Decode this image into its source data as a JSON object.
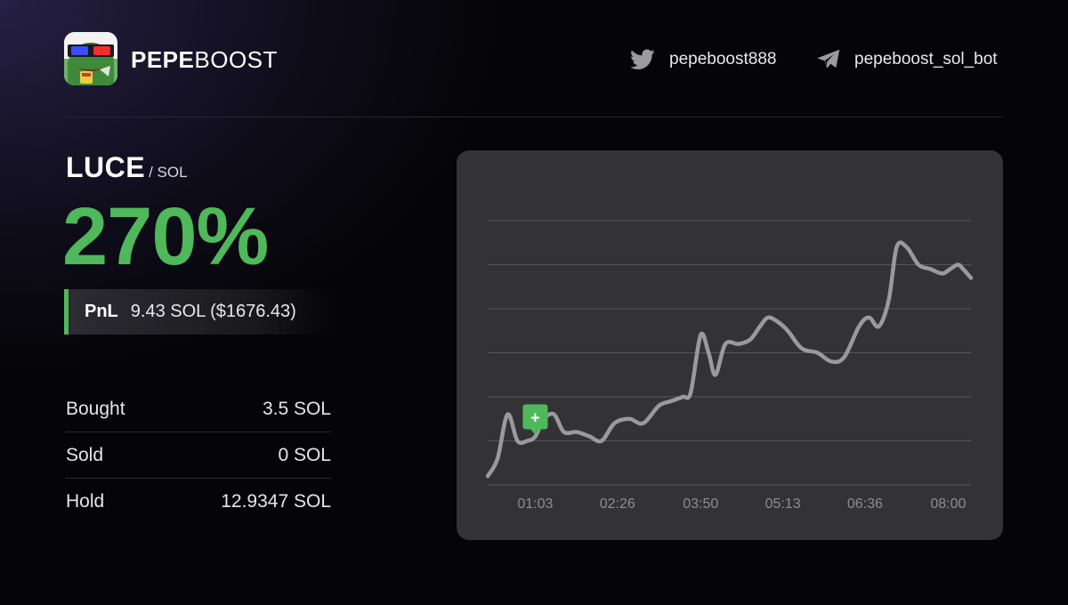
{
  "brand": {
    "bold": "PEPE",
    "light": "BOOST"
  },
  "social": {
    "twitter": {
      "icon": "twitter-icon",
      "handle": "pepeboost888"
    },
    "telegram": {
      "icon": "telegram-icon",
      "handle": "pepeboost_sol_bot"
    }
  },
  "pair": {
    "token": "LUCE",
    "quote": "/ SOL"
  },
  "pnl_percent": "270%",
  "pnl": {
    "label": "PnL",
    "value": "9.43 SOL ($1676.43)"
  },
  "stats": [
    {
      "label": "Bought",
      "value": "3.5 SOL"
    },
    {
      "label": "Sold",
      "value": "0 SOL"
    },
    {
      "label": "Hold",
      "value": "12.9347 SOL"
    }
  ],
  "colors": {
    "accent_green": "#4fb85a",
    "chart_line": "#9a9a9c",
    "card_bg": "#333336"
  },
  "chart_data": {
    "type": "line",
    "x_ticks": [
      "01:03",
      "02:26",
      "03:50",
      "05:13",
      "06:36",
      "08:00"
    ],
    "x_tick_minutes": [
      63,
      146,
      230,
      313,
      396,
      480
    ],
    "grid": true,
    "gridline_count": 6,
    "buy_marker": {
      "x": 63,
      "label": "+"
    },
    "series": [
      {
        "values": [
          [
            15,
            0.2
          ],
          [
            25,
            0.6
          ],
          [
            35,
            1.6
          ],
          [
            45,
            1.0
          ],
          [
            55,
            1.0
          ],
          [
            63,
            1.1
          ],
          [
            72,
            1.5
          ],
          [
            82,
            1.6
          ],
          [
            92,
            1.2
          ],
          [
            105,
            1.2
          ],
          [
            118,
            1.1
          ],
          [
            130,
            1.0
          ],
          [
            143,
            1.4
          ],
          [
            158,
            1.5
          ],
          [
            172,
            1.4
          ],
          [
            188,
            1.8
          ],
          [
            200,
            1.9
          ],
          [
            212,
            2.0
          ],
          [
            220,
            2.1
          ],
          [
            230,
            3.4
          ],
          [
            238,
            3.0
          ],
          [
            245,
            2.5
          ],
          [
            255,
            3.2
          ],
          [
            268,
            3.2
          ],
          [
            280,
            3.3
          ],
          [
            290,
            3.6
          ],
          [
            298,
            3.8
          ],
          [
            308,
            3.7
          ],
          [
            318,
            3.5
          ],
          [
            332,
            3.1
          ],
          [
            348,
            3.0
          ],
          [
            362,
            2.8
          ],
          [
            375,
            2.9
          ],
          [
            390,
            3.6
          ],
          [
            400,
            3.8
          ],
          [
            410,
            3.6
          ],
          [
            420,
            4.2
          ],
          [
            428,
            5.4
          ],
          [
            438,
            5.4
          ],
          [
            450,
            5.0
          ],
          [
            462,
            4.9
          ],
          [
            474,
            4.8
          ],
          [
            482,
            4.9
          ],
          [
            490,
            5.0
          ],
          [
            495,
            4.9
          ],
          [
            503,
            4.7
          ]
        ]
      }
    ]
  }
}
